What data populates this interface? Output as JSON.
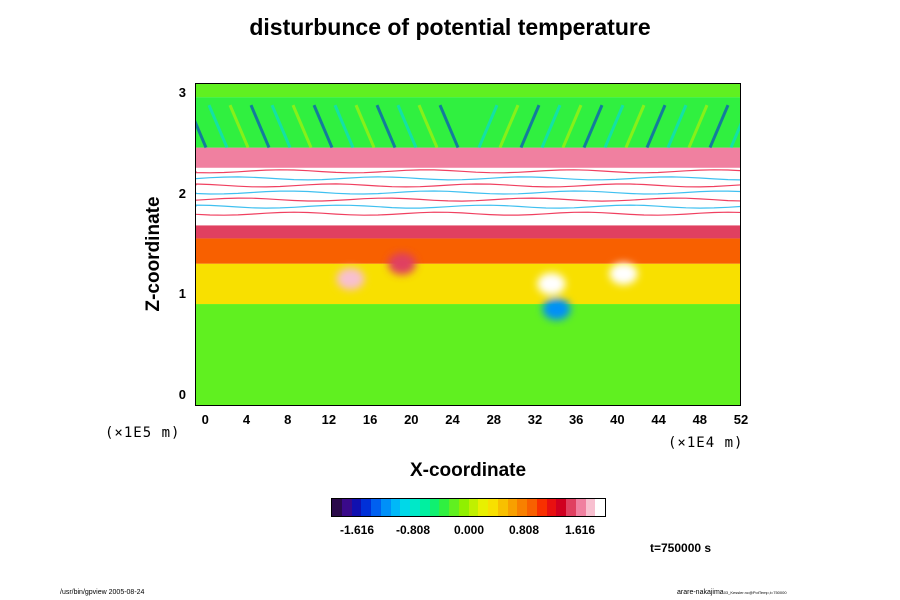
{
  "chart_data": {
    "type": "heatmap",
    "title": "disturbunce of potential temperature",
    "xlabel": "X-coordinate",
    "ylabel": "Z-coordinate",
    "x_unit": "(×1E4 m)",
    "y_unit": "(×1E5 m)",
    "xlim": [
      -1,
      52
    ],
    "ylim": [
      -0.12,
      3.08
    ],
    "x_ticks": [
      "0",
      "4",
      "8",
      "12",
      "16",
      "20",
      "24",
      "28",
      "32",
      "36",
      "40",
      "44",
      "48",
      "52"
    ],
    "y_ticks": [
      "0",
      "1",
      "2",
      "3"
    ],
    "colorbar": {
      "min": -2.02,
      "max": 2.02,
      "labels": [
        "-1.616",
        "-0.808",
        "0.000",
        "0.808",
        "1.616"
      ],
      "palette": [
        "#2a0a4a",
        "#3a0a8a",
        "#1010b0",
        "#0030d8",
        "#0060f0",
        "#0090f8",
        "#00b8f8",
        "#00d8e8",
        "#00e8c8",
        "#00f0a0",
        "#10f070",
        "#30f040",
        "#60f020",
        "#90f000",
        "#c0f000",
        "#e8f000",
        "#f8e000",
        "#f8c000",
        "#f8a000",
        "#f88000",
        "#f86000",
        "#f83000",
        "#e81010",
        "#d00020",
        "#e04060",
        "#f080a0",
        "#f8c0d0"
      ]
    },
    "time_label": "t=750000 s",
    "field_description_bands": [
      {
        "z_range": [
          -0.12,
          0.9
        ],
        "value": -0.2
      },
      {
        "z_range": [
          0.9,
          1.3
        ],
        "value": 0.4
      },
      {
        "z_range": [
          1.3,
          1.55
        ],
        "value": 1.0
      },
      {
        "z_range": [
          1.55,
          1.68
        ],
        "value": 1.7
      },
      {
        "z_range": [
          1.68,
          1.76
        ],
        "value": 2.5
      },
      {
        "z_range": [
          1.76,
          2.25
        ],
        "value": 2.5,
        "striped": true
      },
      {
        "z_range": [
          2.25,
          2.45
        ],
        "value": 1.8
      },
      {
        "z_range": [
          2.45,
          2.95
        ],
        "value": -0.3,
        "waves": true
      },
      {
        "z_range": [
          2.95,
          3.08
        ],
        "value": -0.2
      }
    ],
    "features": [
      {
        "x": 14,
        "z": 1.15,
        "value": 1.9
      },
      {
        "x": 19,
        "z": 1.3,
        "value": 1.6
      },
      {
        "x": 33.5,
        "z": 1.1,
        "value": 2.4
      },
      {
        "x": 40.5,
        "z": 1.2,
        "value": 2.2
      },
      {
        "x": 34,
        "z": 0.85,
        "value": -1.2
      }
    ]
  },
  "footer": {
    "left": "/usr/bin/gpview 2005-08-24",
    "right_main": "arare-nakajima",
    "right_small": "03_Kessler.nc@PotTemp,t=750000"
  }
}
